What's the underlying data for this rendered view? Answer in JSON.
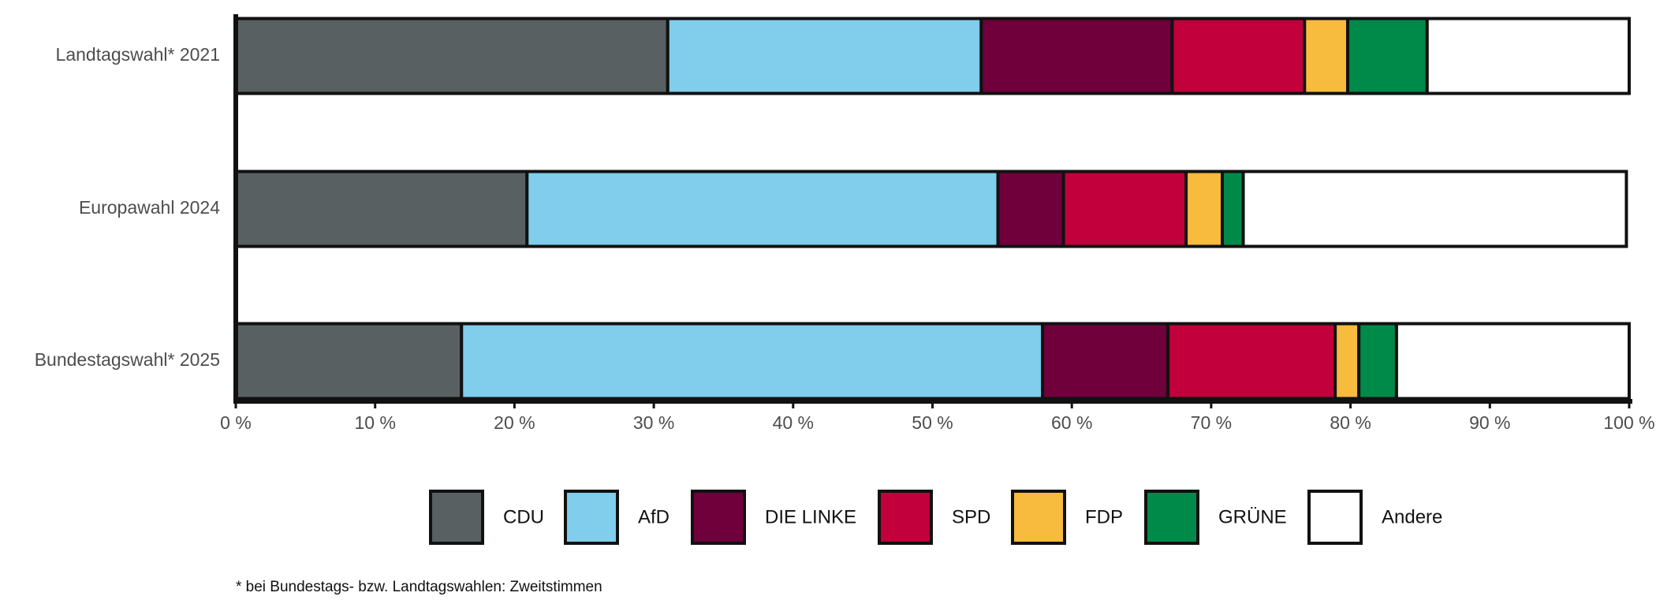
{
  "chart_data": {
    "type": "bar",
    "orientation": "horizontal",
    "stacked": true,
    "categories": [
      "Landtagswahl* 2021",
      "Europawahl 2024",
      "Bundestagswahl* 2025"
    ],
    "series": [
      {
        "name": "CDU",
        "color": "#586062",
        "values": [
          31.0,
          20.9,
          16.2
        ]
      },
      {
        "name": "AfD",
        "color": "#80cdec",
        "values": [
          22.5,
          33.8,
          41.7
        ]
      },
      {
        "name": "DIE LINKE",
        "color": "#6f003c",
        "values": [
          13.7,
          4.7,
          9.0
        ]
      },
      {
        "name": "SPD",
        "color": "#c1003c",
        "values": [
          9.5,
          8.8,
          12.0
        ]
      },
      {
        "name": "FDP",
        "color": "#f7bb3d",
        "values": [
          3.1,
          2.6,
          1.7
        ]
      },
      {
        "name": "GRÜNE",
        "color": "#008a4a",
        "values": [
          5.7,
          1.5,
          2.7
        ]
      },
      {
        "name": "Andere",
        "color": "#ffffff",
        "values": [
          14.5,
          27.5,
          16.7
        ]
      }
    ],
    "xlim": [
      0,
      100
    ],
    "xticks": [
      {
        "value": 0,
        "label": "0 %"
      },
      {
        "value": 10,
        "label": "10 %"
      },
      {
        "value": 20,
        "label": "20 %"
      },
      {
        "value": 30,
        "label": "30 %"
      },
      {
        "value": 40,
        "label": "40 %"
      },
      {
        "value": 50,
        "label": "50 %"
      },
      {
        "value": 60,
        "label": "60 %"
      },
      {
        "value": 70,
        "label": "70 %"
      },
      {
        "value": 80,
        "label": "80 %"
      },
      {
        "value": 90,
        "label": "90 %"
      },
      {
        "value": 100,
        "label": "100 %"
      }
    ],
    "legend": "bottom",
    "note": "* bei Bundestags- bzw. Landtagswahlen: Zweitstimmen"
  }
}
